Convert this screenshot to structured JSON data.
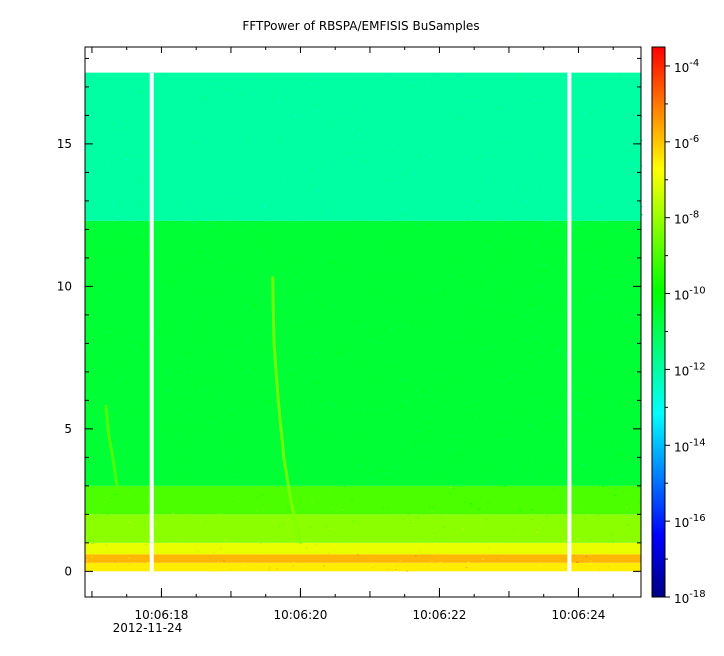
{
  "chart_data": {
    "type": "heatmap",
    "title": "FFTPower of RBSPA/EMFISIS  BuSamples",
    "xlabel": "",
    "ylabel": "",
    "x_ticks": [
      {
        "value": 18,
        "label": "10:06:18",
        "sublabel": "2012-11-24"
      },
      {
        "value": 20,
        "label": "10:06:20",
        "sublabel": ""
      },
      {
        "value": 22,
        "label": "10:06:22",
        "sublabel": ""
      },
      {
        "value": 24,
        "label": "10:06:24",
        "sublabel": ""
      }
    ],
    "xlim": [
      16.9,
      24.9
    ],
    "y_ticks": [
      {
        "value": 0,
        "label": "0"
      },
      {
        "value": 5,
        "label": "5"
      },
      {
        "value": 10,
        "label": "10"
      },
      {
        "value": 15,
        "label": "15"
      }
    ],
    "ylim": [
      -0.9,
      18.4
    ],
    "colorbar": {
      "scale": "log",
      "range": [
        -18,
        -3.5
      ],
      "ticks": [
        {
          "base": "10",
          "exp": "-4",
          "value": -4
        },
        {
          "base": "10",
          "exp": "-6",
          "value": -6
        },
        {
          "base": "10",
          "exp": "-8",
          "value": -8
        },
        {
          "base": "10",
          "exp": "-10",
          "value": -10
        },
        {
          "base": "10",
          "exp": "-12",
          "value": -12
        },
        {
          "base": "10",
          "exp": "-14",
          "value": -14
        },
        {
          "base": "10",
          "exp": "-16",
          "value": -16
        },
        {
          "base": "10",
          "exp": "-18",
          "value": -18
        }
      ],
      "colors": [
        "#000080",
        "#0000ff",
        "#0080ff",
        "#00ffff",
        "#00ff80",
        "#00ff00",
        "#80ff00",
        "#ffff00",
        "#ff8000",
        "#ff0000"
      ]
    },
    "data_ylim": [
      0,
      17.5
    ],
    "data_gaps_x": [
      17.86,
      23.87
    ],
    "power_bands": [
      {
        "y": [
          0.0,
          0.3
        ],
        "log_power": -6.5
      },
      {
        "y": [
          0.3,
          0.6
        ],
        "log_power": -5.8
      },
      {
        "y": [
          0.6,
          1.0
        ],
        "log_power": -7.0
      },
      {
        "y": [
          1.0,
          2.0
        ],
        "log_power": -8.2
      },
      {
        "y": [
          2.0,
          3.0
        ],
        "log_power": -9.0
      },
      {
        "y": [
          3.0,
          12.3
        ],
        "log_power": -10.6
      },
      {
        "y": [
          12.3,
          17.5
        ],
        "log_power": -12.0
      }
    ],
    "chorus_elements": [
      {
        "x": [
          19.6,
          19.62,
          19.68,
          19.76,
          19.86,
          20.0
        ],
        "y": [
          10.3,
          8.0,
          6.0,
          4.0,
          2.5,
          1.0
        ],
        "log_power": -8.3
      },
      {
        "x": [
          17.2,
          17.24,
          17.3,
          17.36
        ],
        "y": [
          5.8,
          4.8,
          4.0,
          3.0
        ],
        "log_power": -8.8
      }
    ]
  }
}
